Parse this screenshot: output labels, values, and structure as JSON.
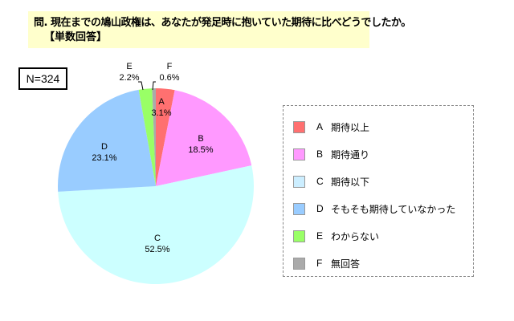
{
  "title": {
    "line1": "問. 現在までの鳩山政権は、あなたが発足時に抱いていた期待に比べどうでしたか。",
    "line2": "【単数回答】"
  },
  "sample_size": "N=324",
  "legend": {
    "items": [
      {
        "letter": "A",
        "label": "期待以上",
        "color": "#ff7070"
      },
      {
        "letter": "B",
        "label": "期待通り",
        "color": "#ff99ff"
      },
      {
        "letter": "C",
        "label": "期待以下",
        "color": "#ccffff"
      },
      {
        "letter": "D",
        "label": "そもそも期待していなかった",
        "color": "#99ccff"
      },
      {
        "letter": "E",
        "label": "わからない",
        "color": "#99ff66"
      },
      {
        "letter": "F",
        "label": "無回答",
        "color": "#aaaaaa"
      }
    ]
  },
  "slice_labels": {
    "A": {
      "name": "A",
      "pct": "3.1%"
    },
    "B": {
      "name": "B",
      "pct": "18.5%"
    },
    "C": {
      "name": "C",
      "pct": "52.5%"
    },
    "D": {
      "name": "D",
      "pct": "23.1%"
    },
    "E": {
      "name": "E",
      "pct": "2.2%"
    },
    "F": {
      "name": "F",
      "pct": "0.6%"
    }
  },
  "chart_data": {
    "type": "pie",
    "title": "問. 現在までの鳩山政権は、あなたが発足時に抱いていた期待に比べどうでしたか。【単数回答】",
    "annotation": "N=324",
    "categories": [
      "A 期待以上",
      "B 期待通り",
      "C 期待以下",
      "D そもそも期待していなかった",
      "E わからない",
      "F 無回答"
    ],
    "values": [
      3.1,
      18.5,
      52.5,
      23.1,
      2.2,
      0.6
    ],
    "colors": [
      "#ff7070",
      "#ff99ff",
      "#ccffff",
      "#99ccff",
      "#99ff66",
      "#aaaaaa"
    ],
    "start_angle": "12 o'clock, clockwise",
    "legend_position": "right"
  }
}
